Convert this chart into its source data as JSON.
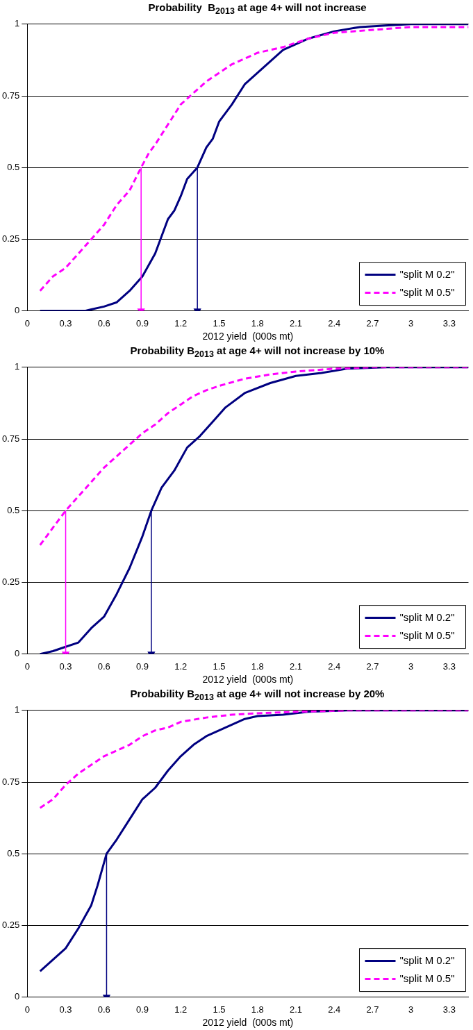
{
  "chart_data": [
    {
      "type": "line",
      "title": "Probability  B$_{2013}$ at age 4+ will not increase",
      "xlabel": "2012 yield  (000s mt)",
      "xlim": [
        0,
        3.45
      ],
      "xticks": [
        0,
        0.3,
        0.6,
        0.9,
        1.2,
        1.5,
        1.8,
        2.1,
        2.4,
        2.7,
        3,
        3.3
      ],
      "ylim": [
        0,
        1
      ],
      "yticks": [
        0,
        0.25,
        0.5,
        0.75,
        1
      ],
      "grid": "y",
      "legend": "bottom right",
      "marker": "none",
      "series": [
        {
          "name": "\"split M 0.2\"",
          "color": "#000080",
          "line_style": "solid",
          "x": [
            0.1,
            0.45,
            0.5,
            0.6,
            0.7,
            0.8,
            0.9,
            1.0,
            1.05,
            1.1,
            1.15,
            1.2,
            1.25,
            1.33,
            1.4,
            1.45,
            1.5,
            1.6,
            1.7,
            1.8,
            1.9,
            2.0,
            2.1,
            2.2,
            2.4,
            2.6,
            2.8,
            3.0,
            3.45
          ],
          "values": [
            0,
            0,
            0.005,
            0.015,
            0.03,
            0.07,
            0.12,
            0.2,
            0.26,
            0.32,
            0.35,
            0.4,
            0.46,
            0.5,
            0.57,
            0.6,
            0.66,
            0.72,
            0.79,
            0.83,
            0.87,
            0.91,
            0.93,
            0.95,
            0.975,
            0.99,
            0.995,
            1,
            1
          ]
        },
        {
          "name": "\"split M 0.5\"",
          "color": "#ff00ff",
          "line_style": "dashed",
          "x": [
            0.1,
            0.2,
            0.3,
            0.4,
            0.5,
            0.6,
            0.7,
            0.8,
            0.89,
            0.95,
            1.0,
            1.1,
            1.2,
            1.3,
            1.4,
            1.5,
            1.6,
            1.7,
            1.8,
            2.0,
            2.2,
            2.4,
            2.7,
            3.0,
            3.45
          ],
          "values": [
            0.07,
            0.12,
            0.15,
            0.2,
            0.25,
            0.3,
            0.37,
            0.42,
            0.5,
            0.55,
            0.58,
            0.65,
            0.72,
            0.76,
            0.8,
            0.83,
            0.86,
            0.88,
            0.9,
            0.92,
            0.95,
            0.97,
            0.98,
            0.99,
            0.99
          ]
        },
        {
          "color": "#ff00ff",
          "line_style": "solid",
          "marker": "triangle",
          "x": [
            0.89,
            0.89
          ],
          "values": [
            0.5,
            0
          ]
        },
        {
          "color": "#000080",
          "line_style": "solid",
          "marker": "triangle",
          "x": [
            1.33,
            1.33
          ],
          "values": [
            0.5,
            0
          ]
        }
      ]
    },
    {
      "type": "line",
      "title": "Probability B$_{2013}$ at age 4+ will not increase by 10%",
      "xlabel": "2012 yield  (000s mt)",
      "xlim": [
        0,
        3.45
      ],
      "xticks": [
        0,
        0.3,
        0.6,
        0.9,
        1.2,
        1.5,
        1.8,
        2.1,
        2.4,
        2.7,
        3,
        3.3
      ],
      "ylim": [
        0,
        1
      ],
      "yticks": [
        0,
        0.25,
        0.5,
        0.75,
        1
      ],
      "grid": "y",
      "legend": "bottom right",
      "marker": "none",
      "series": [
        {
          "name": "\"split M 0.2\"",
          "color": "#000080",
          "line_style": "solid",
          "x": [
            0.1,
            0.2,
            0.3,
            0.4,
            0.5,
            0.6,
            0.7,
            0.8,
            0.9,
            0.97,
            1.05,
            1.15,
            1.25,
            1.35,
            1.45,
            1.55,
            1.7,
            1.9,
            2.1,
            2.3,
            2.5,
            2.8,
            3.45
          ],
          "values": [
            0,
            0.01,
            0.025,
            0.04,
            0.09,
            0.13,
            0.21,
            0.3,
            0.41,
            0.5,
            0.58,
            0.64,
            0.72,
            0.76,
            0.81,
            0.86,
            0.91,
            0.945,
            0.97,
            0.98,
            0.995,
            1,
            1
          ]
        },
        {
          "name": "\"split M 0.5\"",
          "color": "#ff00ff",
          "line_style": "dashed",
          "x": [
            0.1,
            0.2,
            0.3,
            0.4,
            0.5,
            0.6,
            0.7,
            0.8,
            0.9,
            1.0,
            1.1,
            1.2,
            1.3,
            1.4,
            1.5,
            1.7,
            1.9,
            2.1,
            2.4,
            2.7,
            3.45
          ],
          "values": [
            0.38,
            0.44,
            0.5,
            0.55,
            0.6,
            0.65,
            0.69,
            0.73,
            0.77,
            0.8,
            0.84,
            0.87,
            0.9,
            0.92,
            0.935,
            0.96,
            0.975,
            0.985,
            0.995,
            1,
            1
          ]
        },
        {
          "color": "#ff00ff",
          "line_style": "solid",
          "marker": "triangle",
          "x": [
            0.3,
            0.3
          ],
          "values": [
            0.5,
            0
          ]
        },
        {
          "color": "#000080",
          "line_style": "solid",
          "marker": "triangle",
          "x": [
            0.97,
            0.97
          ],
          "values": [
            0.5,
            0
          ]
        }
      ]
    },
    {
      "type": "line",
      "title": "Probability B$_{2013}$ at age 4+ will not increase by 20%",
      "xlabel": "2012 yield  (000s mt)",
      "xlim": [
        0,
        3.45
      ],
      "xticks": [
        0,
        0.3,
        0.6,
        0.9,
        1.2,
        1.5,
        1.8,
        2.1,
        2.4,
        2.7,
        3,
        3.3
      ],
      "ylim": [
        0,
        1
      ],
      "yticks": [
        0,
        0.25,
        0.5,
        0.75,
        1
      ],
      "grid": "y",
      "legend": "bottom right",
      "marker": "none",
      "series": [
        {
          "name": "\"split M 0.2\"",
          "color": "#000080",
          "line_style": "solid",
          "x": [
            0.1,
            0.2,
            0.3,
            0.4,
            0.5,
            0.55,
            0.62,
            0.7,
            0.8,
            0.9,
            1.0,
            1.1,
            1.2,
            1.3,
            1.4,
            1.5,
            1.6,
            1.7,
            1.8,
            2.0,
            2.2,
            2.5,
            3.45
          ],
          "values": [
            0.09,
            0.13,
            0.17,
            0.24,
            0.32,
            0.39,
            0.5,
            0.55,
            0.62,
            0.69,
            0.73,
            0.79,
            0.84,
            0.88,
            0.91,
            0.93,
            0.95,
            0.97,
            0.98,
            0.985,
            0.995,
            1,
            1
          ]
        },
        {
          "name": "\"split M 0.5\"",
          "color": "#ff00ff",
          "line_style": "dashed",
          "x": [
            0.1,
            0.2,
            0.3,
            0.4,
            0.5,
            0.6,
            0.7,
            0.8,
            0.9,
            1.0,
            1.1,
            1.2,
            1.4,
            1.6,
            1.8,
            2.1,
            2.5,
            3.45
          ],
          "values": [
            0.66,
            0.69,
            0.74,
            0.78,
            0.81,
            0.84,
            0.86,
            0.88,
            0.91,
            0.93,
            0.94,
            0.96,
            0.975,
            0.985,
            0.99,
            0.995,
            1,
            1
          ]
        },
        {
          "color": "#000080",
          "line_style": "solid",
          "marker": "triangle",
          "x": [
            0.62,
            0.62
          ],
          "values": [
            0.5,
            0
          ]
        }
      ]
    }
  ]
}
